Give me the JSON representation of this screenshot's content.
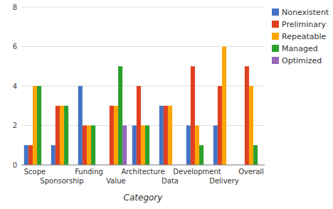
{
  "chart_data": {
    "type": "bar",
    "x_label": "Category",
    "categories": [
      "Scope",
      "Sponsorship",
      "Funding",
      "Value",
      "Architecture",
      "Data",
      "Development",
      "Delivery",
      "Overall"
    ],
    "series": [
      {
        "name": "Nonexistent",
        "color": "#4472c4",
        "values": [
          1,
          1,
          4,
          0,
          2,
          3,
          2,
          2,
          0
        ]
      },
      {
        "name": "Preliminary",
        "color": "#e04020",
        "values": [
          1,
          3,
          2,
          3,
          4,
          3,
          5,
          4,
          5
        ]
      },
      {
        "name": "Repeatable",
        "color": "#ffa500",
        "values": [
          4,
          3,
          2,
          3,
          2,
          3,
          2,
          6,
          4
        ]
      },
      {
        "name": "Managed",
        "color": "#2ca02c",
        "values": [
          4,
          3,
          2,
          5,
          2,
          0,
          1,
          0,
          1
        ]
      },
      {
        "name": "Optimized",
        "color": "#9467bd",
        "values": [
          0,
          0,
          0,
          2,
          0,
          0,
          0,
          0,
          0
        ]
      }
    ],
    "ylim": [
      0,
      8
    ],
    "yticks": [
      0,
      2,
      4,
      6,
      8
    ],
    "grid": true,
    "legend": "right"
  }
}
